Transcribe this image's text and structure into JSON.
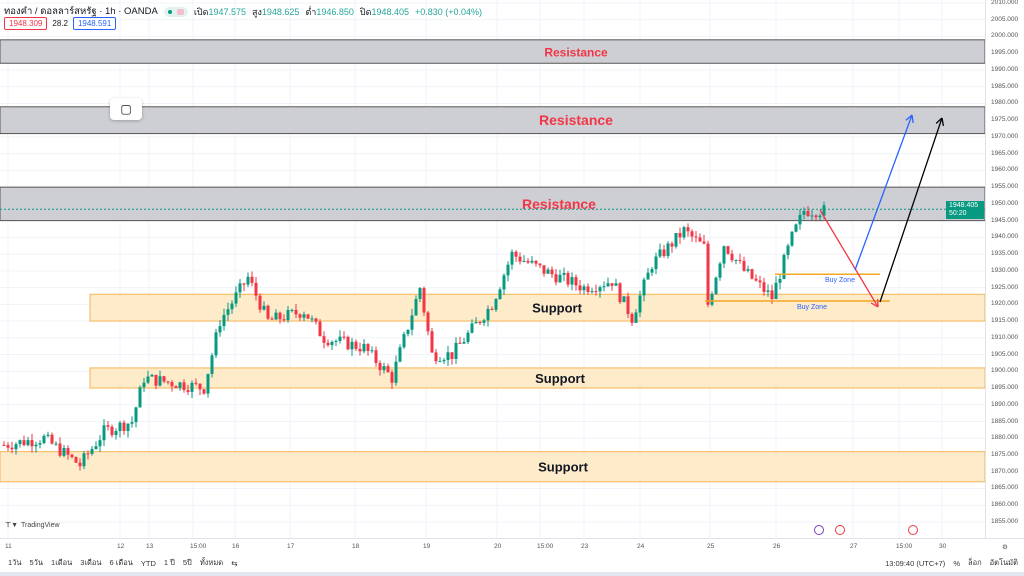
{
  "header": {
    "symbol": "ทองคำ / ดอลลาร์สหรัฐ · 1h · OANDA",
    "open_label": "เปิด",
    "open": "1947.575",
    "high_label": "สูง",
    "high": "1948.625",
    "low_label": "ต่ำ",
    "low": "1946.850",
    "close_label": "ปิด",
    "close": "1948.405",
    "change": "+0.830 (+0.04%)"
  },
  "badges": {
    "sell": "1948.309",
    "spread": "28.2",
    "buy": "1948.591"
  },
  "last_price": {
    "price": "1948.405",
    "countdown": "50:20"
  },
  "price_axis": [
    "2010.000",
    "2005.000",
    "2000.000",
    "1995.000",
    "1990.000",
    "1985.000",
    "1980.000",
    "1975.000",
    "1970.000",
    "1965.000",
    "1960.000",
    "1955.000",
    "1950.000",
    "1945.000",
    "1940.000",
    "1935.000",
    "1930.000",
    "1925.000",
    "1920.000",
    "1915.000",
    "1910.000",
    "1905.000",
    "1900.000",
    "1895.000",
    "1890.000",
    "1885.000",
    "1880.000",
    "1875.000",
    "1870.000",
    "1865.000",
    "1860.000",
    "1855.000"
  ],
  "time_axis": [
    "11",
    "12",
    "13",
    "15:00",
    "16",
    "17",
    "18",
    "19",
    "20",
    "15:00",
    "23",
    "24",
    "25",
    "26",
    "27",
    "15:00",
    "30"
  ],
  "zones": [
    {
      "type": "resistance",
      "label": "Resistance",
      "low": 1992,
      "high": 1999
    },
    {
      "type": "resistance",
      "label": "Resistance",
      "low": 1971,
      "high": 1979
    },
    {
      "type": "resistance",
      "label": "Resistance",
      "low": 1945,
      "high": 1955
    },
    {
      "type": "support",
      "label": "Support",
      "low": 1915,
      "high": 1923
    },
    {
      "type": "support",
      "label": "Support",
      "low": 1895,
      "high": 1901
    },
    {
      "type": "support",
      "label": "Support",
      "low": 1867,
      "high": 1876
    }
  ],
  "buy_zones": [
    {
      "label": "Buy Zone",
      "price": 1929
    },
    {
      "label": "Buy Zone",
      "price": 1921
    }
  ],
  "chart_data": {
    "type": "candlestick",
    "path": [
      [
        0,
        1878
      ],
      [
        10,
        1880
      ],
      [
        19,
        1872
      ],
      [
        25,
        1882
      ],
      [
        32,
        1885
      ],
      [
        35,
        1898
      ],
      [
        50,
        1895
      ],
      [
        54,
        1915
      ],
      [
        61,
        1928
      ],
      [
        66,
        1915
      ],
      [
        75,
        1918
      ],
      [
        80,
        1910
      ],
      [
        90,
        1907
      ],
      [
        97,
        1898
      ],
      [
        104,
        1925
      ],
      [
        107,
        1905
      ],
      [
        112,
        1905
      ],
      [
        122,
        1920
      ],
      [
        127,
        1935
      ],
      [
        135,
        1930
      ],
      [
        145,
        1925
      ],
      [
        152,
        1927
      ],
      [
        157,
        1916
      ],
      [
        162,
        1932
      ],
      [
        170,
        1942
      ],
      [
        175,
        1937
      ],
      [
        176,
        1920
      ],
      [
        180,
        1938
      ],
      [
        185,
        1930
      ],
      [
        192,
        1922
      ],
      [
        197,
        1940
      ],
      [
        200,
        1948
      ],
      [
        205,
        1948
      ]
    ]
  },
  "toolbar": {
    "ranges": [
      "1วัน",
      "5วัน",
      "1เดือน",
      "3เดือน",
      "6 เดือน",
      "YTD",
      "1 ปี",
      "5ปี",
      "ทั้งหมด"
    ],
    "time": "13:09:40 (UTC+7)",
    "percent": "%",
    "log": "ล็อก",
    "auto": "อัตโนมัติ"
  },
  "brand": "TradingView",
  "colors": {
    "up": "#089981",
    "down": "#f23645",
    "resistance_text": "#f23645",
    "support_fill": "#fde9c4"
  }
}
